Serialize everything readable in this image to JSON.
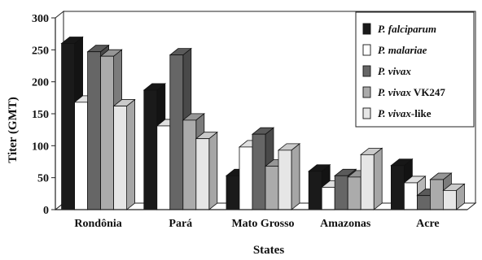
{
  "chart_data": {
    "type": "bar",
    "title": "",
    "xlabel": "States",
    "ylabel": "Titer (GMT)",
    "ylim": [
      0,
      300
    ],
    "yticks": [
      0,
      50,
      100,
      150,
      200,
      250,
      300
    ],
    "grid": false,
    "legend_position": "top-right",
    "categories": [
      "Rondônia",
      "Pará",
      "Mato Grosso",
      "Amazonas",
      "Acre"
    ],
    "series": [
      {
        "name": "P. falciparum",
        "name_italic": "P. falciparum",
        "name_plain": "",
        "color": "#1a1a1a",
        "values": [
          260,
          187,
          53,
          60,
          69
        ]
      },
      {
        "name": "P. malariae",
        "name_italic": "P. malariae",
        "name_plain": "",
        "color": "#ffffff",
        "values": [
          168,
          131,
          98,
          35,
          42
        ]
      },
      {
        "name": "P. vivax",
        "name_italic": "P. vivax",
        "name_plain": "",
        "color": "#666666",
        "values": [
          247,
          242,
          118,
          53,
          22
        ]
      },
      {
        "name": "P. vivax VK247",
        "name_italic": "P. vivax",
        "name_plain": " VK247",
        "color": "#ababab",
        "values": [
          240,
          140,
          68,
          51,
          47
        ]
      },
      {
        "name": "P. vivax-like",
        "name_italic": "P. vivax",
        "name_plain": "-like",
        "color": "#e6e6e6",
        "values": [
          162,
          111,
          93,
          86,
          30
        ]
      }
    ]
  }
}
